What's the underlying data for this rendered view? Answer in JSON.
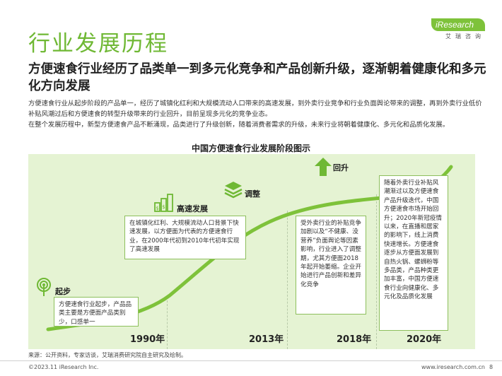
{
  "page_title": "行业发展历程",
  "logo": {
    "wordmark": "iResearch",
    "cn": "艾瑞咨询"
  },
  "headline": "方便速食行业经历了品类单一到多元化竞争和产品创新升级，逐渐朝着健康化和多元化方向发展",
  "intro": {
    "p1": "方便速食行业从起步阶段的产品单一，经历了城镇化红利和大规模流动人口带来的高速发展，到外卖行业竞争和行业负面舆论带来的调整，再到外卖行业低价补贴风潮过后和方便速食的转型升级带来的行业回升，目前呈现多元化的竞争业态。",
    "p2": "在整个发展历程中，新型方便速食产品不断涌现，品类进行了升级创新，随着消费者需求的升级，未来行业将朝着健康化、多元化和品质化发展。"
  },
  "diagram": {
    "title": "中国方便速食行业发展阶段图示",
    "stages": [
      {
        "label": "起步",
        "icon": "antenna-icon",
        "text": "方便速食行业起步，产品品类主要是方便面产品类别少，口感单一"
      },
      {
        "label": "高速发展",
        "icon": "money-growth-icon",
        "text": "在城镇化红利、大规模流动人口背景下快速发展，以方便面为代表的方便速食行业，在2000年代初到2010年代初年实现了高速发展"
      },
      {
        "label": "调整",
        "icon": "layers-icon",
        "text": "受外卖行业的补贴竞争加剧以及“不健康、没营养”负面舆论等因素影响，行业进入了调整期，尤其方便面2018年起开始萎缩。企业开始进行产品创新和差异化竞争"
      },
      {
        "label": "回升",
        "icon": "arrow-up-icon",
        "text": "随着外卖行业补贴风潮渐过以及方便速食产品升级迭代，中国方便速食市场开始回升；2020年新冠疫情以来，在直播和居家的影响下，线上消费快速增长。方便速食逐步从方便面发展到自热火锅、螺蛳粉等多品类，产品种类更加丰富，中国方便速食行业向健康化、多元化及品质化发展"
      }
    ],
    "years": [
      "1990年",
      "2013年",
      "2018年",
      "2020年"
    ]
  },
  "source": "来源：公开资料，专家访谈，艾瑞消费研究院自主研究及绘制。",
  "footer": {
    "copyright": "©2023.11 iResearch Inc.",
    "url": "www.iresearch.com.cn",
    "page": "8"
  },
  "colors": {
    "accent": "#6fb834",
    "curve": "#7ec23a",
    "background": "#e5f3d3"
  }
}
